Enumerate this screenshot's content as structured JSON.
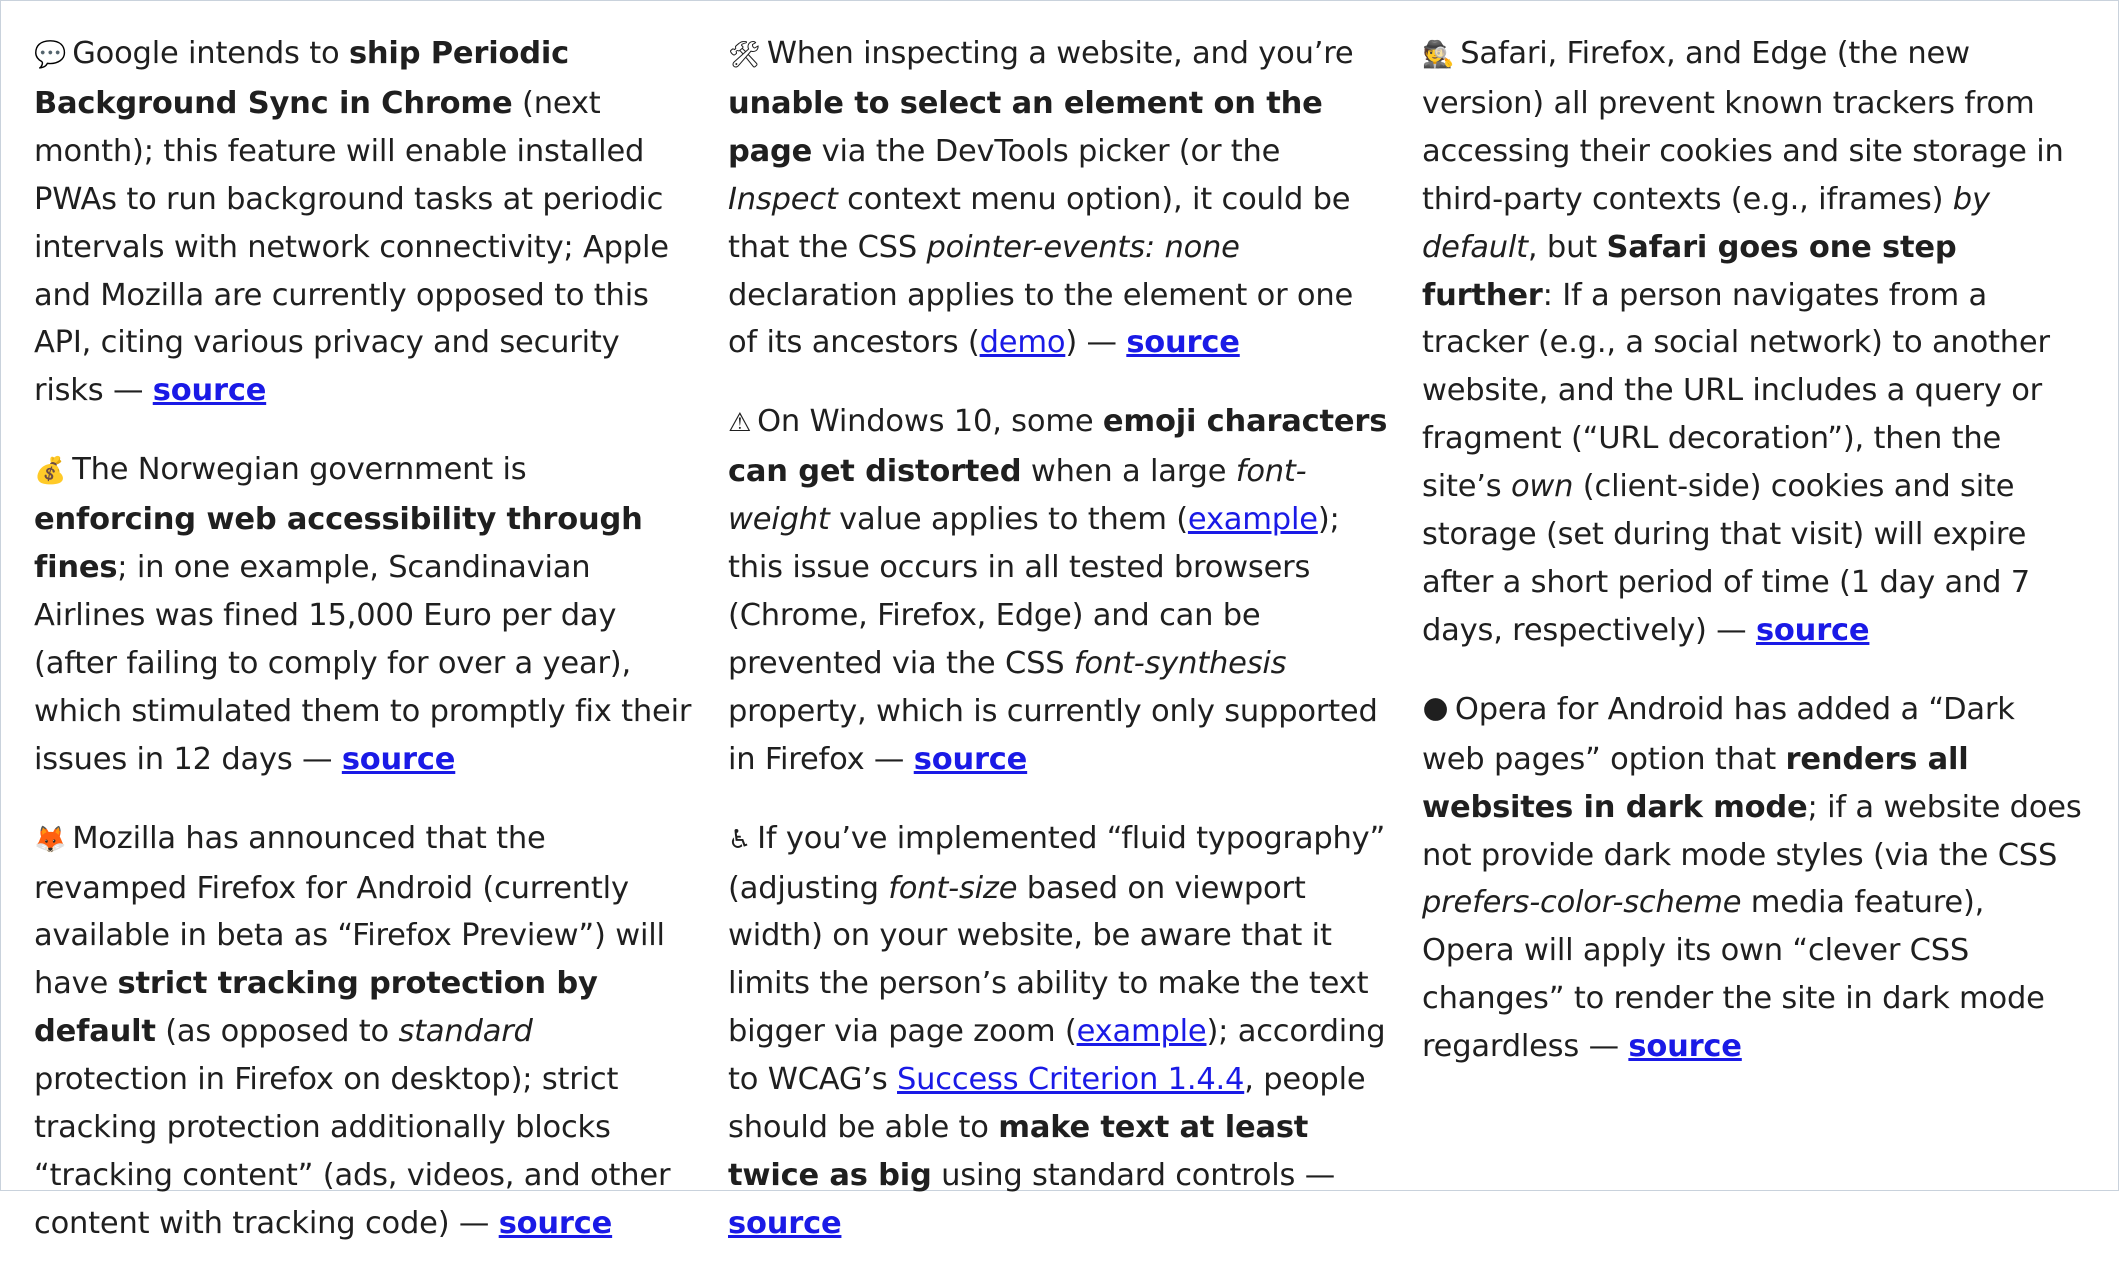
{
  "items": [
    {
      "col": 0,
      "emoji": "💬",
      "emoji_name": "speech-bubble-icon",
      "parts": [
        {
          "t": "text",
          "v": "Google intends to "
        },
        {
          "t": "b",
          "v": "ship Periodic Background Sync in Chrome"
        },
        {
          "t": "text",
          "v": " (next month); this feature will enable installed PWAs to run background tasks at periodic intervals with network connectivity; Apple and Mozilla are currently opposed to this API, citing various privacy and security risks — "
        },
        {
          "t": "src",
          "v": "source"
        }
      ]
    },
    {
      "col": 0,
      "emoji": "💰",
      "emoji_name": "money-bag-icon",
      "parts": [
        {
          "t": "text",
          "v": "The Norwegian government is "
        },
        {
          "t": "b",
          "v": "enforcing web accessibility through fines"
        },
        {
          "t": "text",
          "v": "; in one example, Scandinavian Airlines was fined 15,000 Euro per day (after failing to comply for over a year), which stimulated them to promptly fix their issues in 12 days — "
        },
        {
          "t": "src",
          "v": "source"
        }
      ]
    },
    {
      "col": 0,
      "emoji": "🦊",
      "emoji_name": "fox-icon",
      "parts": [
        {
          "t": "text",
          "v": "Mozilla has announced that the revamped Firefox for Android (currently available in beta as “Firefox Preview”) will have "
        },
        {
          "t": "b",
          "v": "strict tracking protection by default"
        },
        {
          "t": "text",
          "v": " (as opposed to "
        },
        {
          "t": "i",
          "v": "standard"
        },
        {
          "t": "text",
          "v": " protection in Firefox on desktop); strict tracking protection additionally blocks “tracking content” (ads, videos, and other content with tracking code) — "
        },
        {
          "t": "src",
          "v": "source"
        }
      ]
    },
    {
      "col": 1,
      "emoji": "🛠",
      "emoji_name": "tools-icon",
      "parts": [
        {
          "t": "text",
          "v": "When inspecting a website, and you’re "
        },
        {
          "t": "b",
          "v": "unable to select an element on the page"
        },
        {
          "t": "text",
          "v": " via the DevTools picker (or the "
        },
        {
          "t": "i",
          "v": "Inspect"
        },
        {
          "t": "text",
          "v": " context menu option), it could be that the CSS "
        },
        {
          "t": "i",
          "v": "pointer-events: none"
        },
        {
          "t": "text",
          "v": " declaration applies to the element or one of its ancestors ("
        },
        {
          "t": "link",
          "v": "demo"
        },
        {
          "t": "text",
          "v": ") — "
        },
        {
          "t": "src",
          "v": "source"
        }
      ]
    },
    {
      "col": 1,
      "emoji": "⚠",
      "emoji_name": "warning-icon",
      "parts": [
        {
          "t": "text",
          "v": "On Windows 10, some "
        },
        {
          "t": "b",
          "v": "emoji characters can get distorted"
        },
        {
          "t": "text",
          "v": " when a large "
        },
        {
          "t": "i",
          "v": "font-weight"
        },
        {
          "t": "text",
          "v": " value applies to them ("
        },
        {
          "t": "link",
          "v": "example"
        },
        {
          "t": "text",
          "v": "); this issue occurs in all tested browsers (Chrome, Firefox, Edge) and can be prevented via the CSS "
        },
        {
          "t": "i",
          "v": "font-synthesis"
        },
        {
          "t": "text",
          "v": " property, which is currently only supported in Firefox — "
        },
        {
          "t": "src",
          "v": "source"
        }
      ]
    },
    {
      "col": 1,
      "emoji": "♿",
      "emoji_name": "wheelchair-icon",
      "parts": [
        {
          "t": "text",
          "v": "If you’ve implemented “fluid typography” (adjusting "
        },
        {
          "t": "i",
          "v": "font-size"
        },
        {
          "t": "text",
          "v": " based on viewport width) on your website, be aware that it limits the person’s ability to make the text bigger via page zoom ("
        },
        {
          "t": "link",
          "v": "example"
        },
        {
          "t": "text",
          "v": "); according to WCAG’s "
        },
        {
          "t": "link",
          "v": "Success Criterion 1.4.4"
        },
        {
          "t": "text",
          "v": ", people should be able to "
        },
        {
          "t": "b",
          "v": "make text at least twice as big"
        },
        {
          "t": "text",
          "v": " using standard controls — "
        },
        {
          "t": "src",
          "v": "source"
        }
      ]
    },
    {
      "col": 2,
      "emoji": "🕵",
      "emoji_name": "detective-icon",
      "parts": [
        {
          "t": "text",
          "v": "Safari, Firefox, and Edge (the new version) all prevent known trackers from accessing their cookies and site storage in third-party contexts (e.g., iframes) "
        },
        {
          "t": "i",
          "v": "by default"
        },
        {
          "t": "text",
          "v": ", but "
        },
        {
          "t": "b",
          "v": "Safari goes one step further"
        },
        {
          "t": "text",
          "v": ": If a person navigates from a tracker (e.g., a social network) to another website, and the URL includes a query or fragment (“URL decoration”), then the site’s "
        },
        {
          "t": "i",
          "v": "own"
        },
        {
          "t": "text",
          "v": " (client-side) cookies and site storage (set during that visit) will expire after a short period of time (1 day and 7 days, respectively) — "
        },
        {
          "t": "src",
          "v": "source"
        }
      ]
    },
    {
      "col": 2,
      "emoji": "🌑",
      "emoji_name": "new-moon-icon",
      "parts": [
        {
          "t": "text",
          "v": "Opera for Android has added a “Dark web pages” option that "
        },
        {
          "t": "b",
          "v": "renders all websites in dark mode"
        },
        {
          "t": "text",
          "v": "; if a website does not provide dark mode styles (via the CSS "
        },
        {
          "t": "i",
          "v": "prefers-color-scheme"
        },
        {
          "t": "text",
          "v": " media feature), Opera will apply its own “clever CSS changes” to render the site in dark mode regardless — "
        },
        {
          "t": "src",
          "v": "source"
        }
      ]
    }
  ],
  "colors": {
    "text": "#1f1f1f",
    "link": "#1a1ae6",
    "border": "#c9d2dc"
  }
}
